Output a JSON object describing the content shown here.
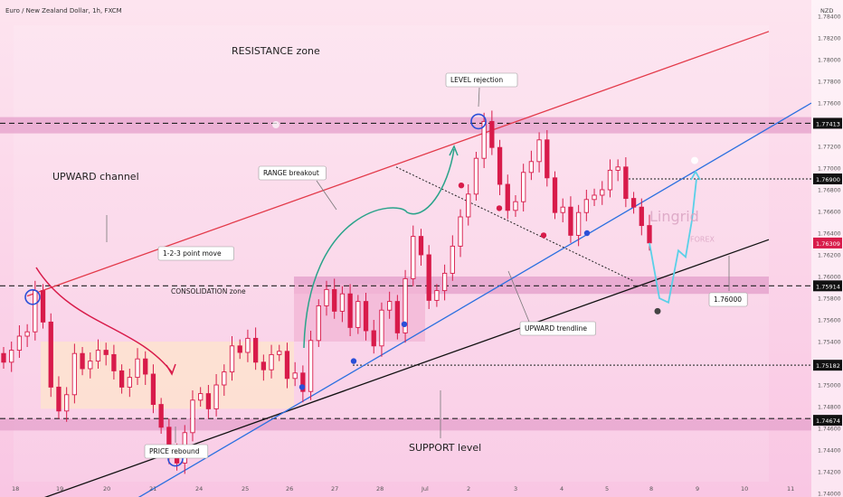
{
  "header": {
    "title": "Euro / New Zealand Dollar, 1h, FXCM",
    "currency": "NZD"
  },
  "watermark": {
    "brand": "Lingrid",
    "sub": "FOREX"
  },
  "colors": {
    "background": "#fbd6ea",
    "up_candle": "#d81b4a",
    "down_candle": "#d81b4a",
    "resistance_line": "#e33a4a",
    "support_line": "#111111",
    "trend_line": "#2a6fe0",
    "band": "#e7a7cf",
    "consolidation_box": "#fde3cf",
    "range_box": "#f2b6d6",
    "projection": "#5ad0e8",
    "curve": "#d81b4a",
    "arrow_green": "#2aa38a"
  },
  "annotations": {
    "resistance_zone": "RESISTANCE zone",
    "upward_channel": "UPWARD channel",
    "point_move": "1-2-3 point move",
    "consolidation_zone": "CONSOLIDATION zone",
    "range_breakout": "RANGE breakout",
    "level_rejection": "LEVEL rejection",
    "upward_trendline": "UPWARD trendline",
    "price_rebound": "PRICE rebound",
    "support_level": "SUPPORT level",
    "target": "1.76000"
  },
  "chart_data": {
    "type": "candlestick",
    "symbol": "EURNZD",
    "timeframe": "1h",
    "x_tick_labels": [
      "18",
      "19",
      "20",
      "21",
      "24",
      "25",
      "26",
      "27",
      "28",
      "Jul",
      "2",
      "3",
      "4",
      "5",
      "8",
      "9",
      "10",
      "11"
    ],
    "y_tick_labels": [
      "1.78400",
      "1.78200",
      "1.78000",
      "1.77800",
      "1.77600",
      "1.77200",
      "1.77000",
      "1.76800",
      "1.76600",
      "1.76400",
      "1.76200",
      "1.76000",
      "1.75800",
      "1.75600",
      "1.75400",
      "1.75200",
      "1.75000",
      "1.74800",
      "1.74600",
      "1.74400",
      "1.74200",
      "1.74000",
      "1.73800"
    ],
    "ylim": [
      1.737,
      1.785
    ],
    "price_levels": [
      {
        "value": 1.77413,
        "label": "1.77413"
      },
      {
        "value": 1.769,
        "label": "1.76900"
      },
      {
        "value": 1.76309,
        "label": "1.76309"
      },
      {
        "value": 1.75914,
        "label": "1.75914"
      },
      {
        "value": 1.75182,
        "label": "1.75182"
      },
      {
        "value": 1.74674,
        "label": "1.74674"
      }
    ],
    "close_points": [
      1.7521,
      1.7532,
      1.7545,
      1.7549,
      1.7587,
      1.7558,
      1.7498,
      1.7476,
      1.7491,
      1.7529,
      1.7515,
      1.7522,
      1.7532,
      1.7528,
      1.7513,
      1.7498,
      1.7507,
      1.7524,
      1.751,
      1.7482,
      1.7461,
      1.7436,
      1.7428,
      1.7456,
      1.7486,
      1.7492,
      1.7478,
      1.75,
      1.7512,
      1.7536,
      1.753,
      1.7543,
      1.7521,
      1.7514,
      1.7528,
      1.7531,
      1.7506,
      1.7511,
      1.7494,
      1.7541,
      1.7573,
      1.7588,
      1.7568,
      1.7584,
      1.7553,
      1.7577,
      1.755,
      1.7536,
      1.7569,
      1.7577,
      1.7548,
      1.7598,
      1.7637,
      1.762,
      1.7578,
      1.7587,
      1.7603,
      1.7628,
      1.7655,
      1.7676,
      1.7709,
      1.7743,
      1.7719,
      1.7685,
      1.7661,
      1.7669,
      1.7696,
      1.7706,
      1.7726,
      1.7691,
      1.7659,
      1.7664,
      1.7638,
      1.7659,
      1.7671,
      1.7675,
      1.768,
      1.7698,
      1.7701,
      1.7672,
      1.7664,
      1.7647,
      1.7631
    ],
    "projection_points": [
      1.7631,
      1.758,
      1.7576,
      1.7624,
      1.7618,
      1.7652,
      1.769
    ],
    "labels_note": ""
  }
}
